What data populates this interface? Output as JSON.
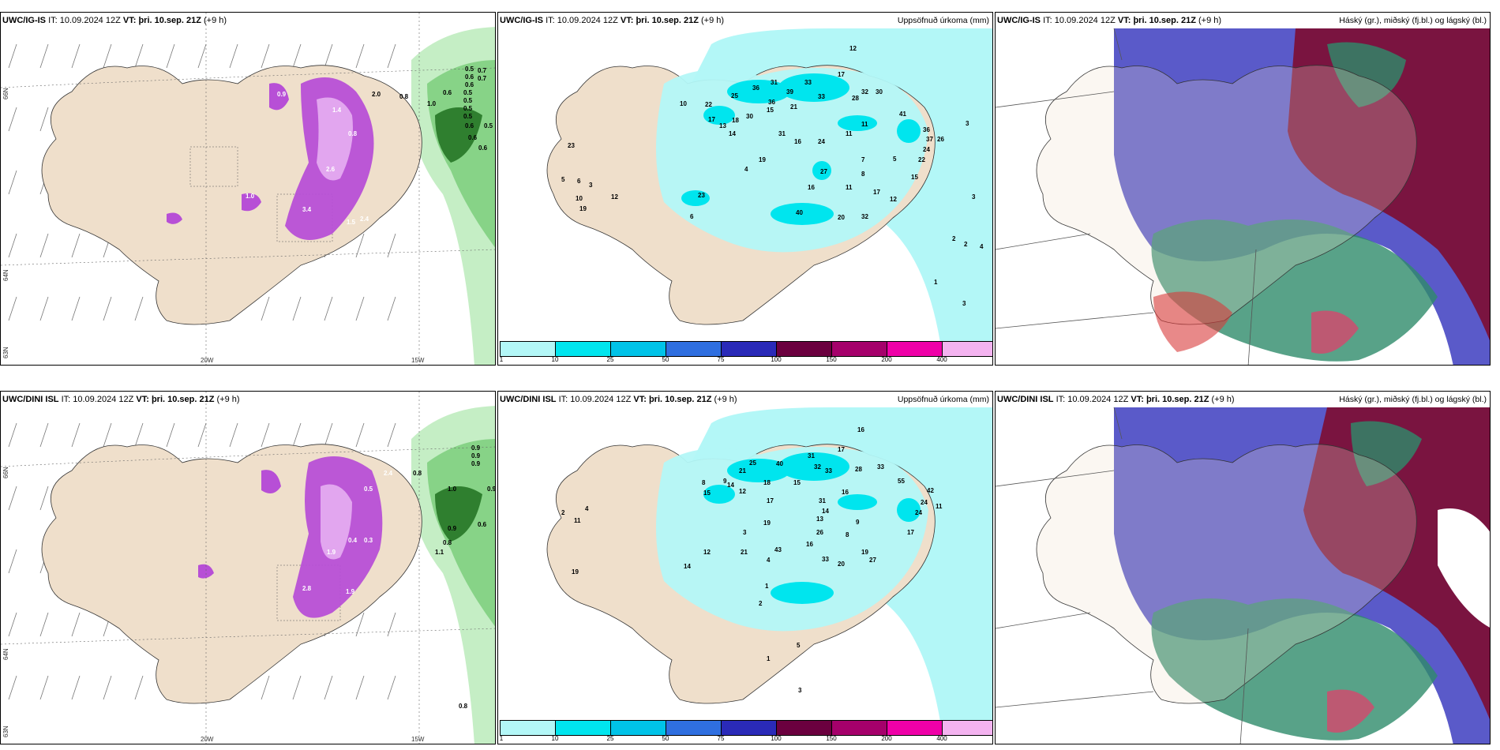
{
  "rows": [
    {
      "model_label": "UWC/IG-IS",
      "it_label": "IT:",
      "it_value": "10.09.2024 12Z",
      "vt_label": "VT:",
      "vt_value": "þri. 10.sep. 21Z",
      "lead": "(+9 h)",
      "left_values": [
        "0.6",
        "0.5",
        "0.7",
        "0.6",
        "0.7",
        "0.6",
        "0.5",
        "0.5",
        "0.5",
        "0.5",
        "1.0",
        "0.8",
        "0.6",
        "0.5",
        "0.6",
        "0.6",
        "2.6",
        "3.4",
        "2.4",
        "1.5",
        "1.0",
        "2.0",
        "0.8",
        "1.4",
        "0.9"
      ],
      "mid_values": [
        "12",
        "17",
        "31",
        "33",
        "32",
        "30",
        "25",
        "36",
        "39",
        "33",
        "28",
        "22",
        "13",
        "30",
        "36",
        "41",
        "17",
        "18",
        "15",
        "21",
        "10",
        "11",
        "36",
        "37",
        "26",
        "3",
        "14",
        "31",
        "16",
        "24",
        "11",
        "23",
        "19",
        "7",
        "5",
        "22",
        "24",
        "4",
        "27",
        "8",
        "15",
        "5",
        "6",
        "3",
        "16",
        "11",
        "17",
        "12",
        "3",
        "12",
        "23",
        "40",
        "20",
        "32",
        "10",
        "19",
        "6",
        "2",
        "2",
        "4",
        "1",
        "3"
      ]
    },
    {
      "model_label": "UWC/DINI ISL",
      "it_label": "IT:",
      "it_value": "10.09.2024 12Z",
      "vt_label": "VT:",
      "vt_value": "þri. 10.sep. 21Z",
      "lead": "(+9 h)",
      "left_values": [
        "0.9",
        "0.9",
        "0.9",
        "1.0",
        "0.9",
        "0.6",
        "0.8",
        "2.4",
        "0.8",
        "1.1",
        "1.9",
        "1.9",
        "2.8",
        "0.4",
        "0.3",
        "0.5",
        "0.9",
        "0.8"
      ],
      "mid_values": [
        "16",
        "17",
        "40",
        "31",
        "32",
        "33",
        "28",
        "33",
        "21",
        "25",
        "18",
        "15",
        "15",
        "8",
        "9",
        "55",
        "14",
        "12",
        "42",
        "24",
        "24",
        "11",
        "17",
        "31",
        "16",
        "14",
        "13",
        "9",
        "3",
        "19",
        "26",
        "8",
        "43",
        "16",
        "33",
        "20",
        "27",
        "17",
        "4",
        "12",
        "21",
        "19",
        "14",
        "2",
        "4",
        "11",
        "19",
        "1",
        "2",
        "5",
        "1",
        "3"
      ]
    }
  ],
  "mid_title": "Uppsöfnuð úrkoma (mm)",
  "right_title": "Háský (gr.), miðský (fj.bl.) og lágský (bl.)",
  "lat_labels": [
    "66N",
    "64N",
    "63N"
  ],
  "lon_labels": [
    "20W",
    "15W"
  ],
  "colorbar": {
    "ticks": [
      "1",
      "10",
      "25",
      "50",
      "75",
      "100",
      "150",
      "200",
      "400"
    ],
    "colors": [
      "#b3f7f7",
      "#00e5ee",
      "#00c3e8",
      "#2f6fe0",
      "#2a2ab8",
      "#6b003f",
      "#a5006b",
      "#ef00a8",
      "#f4b3f0"
    ]
  },
  "colors": {
    "land": "#efdfcb",
    "precip_light": "#b3f7f7",
    "precip_mid": "#00e5ee",
    "snow_purple": "#b74fd6",
    "rain_green": "#3f9a3f",
    "cloud_high": "#5a5ac9",
    "cloud_mid": "#7a1440",
    "cloud_low": "#2e8b6a"
  }
}
